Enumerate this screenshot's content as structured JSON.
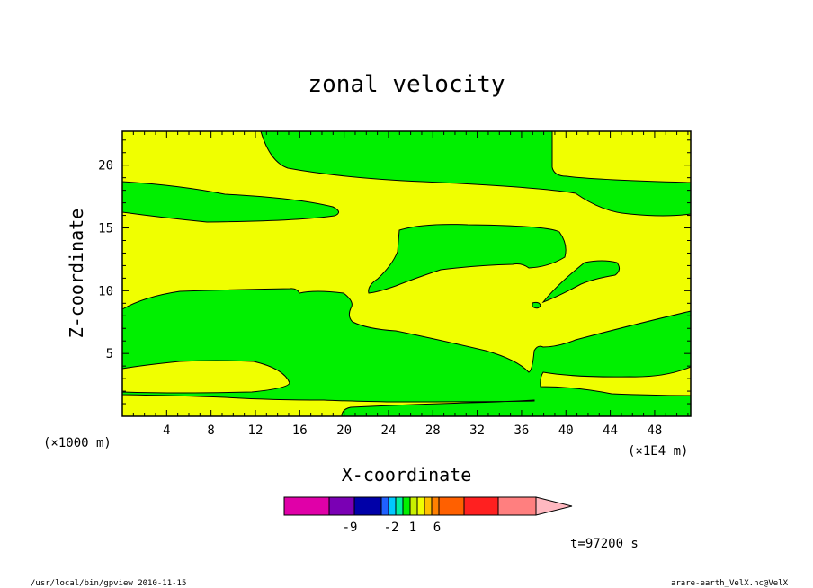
{
  "chart_data": {
    "type": "contour",
    "title": "zonal velocity",
    "xlabel": "X-coordinate",
    "ylabel": "Z-coordinate",
    "x_unit_left": "(×1000 m)",
    "x_unit_right": "(×1E4 m)",
    "x_ticks": [
      4,
      8,
      12,
      16,
      20,
      24,
      28,
      32,
      36,
      40,
      44,
      48
    ],
    "y_ticks": [
      5,
      10,
      15,
      20
    ],
    "xlim": [
      0,
      51.25
    ],
    "ylim": [
      0,
      22.7
    ],
    "contour_colors": {
      "positive_small": "#f0ff00",
      "negative_small": "#00f000",
      "background": "#ffffff"
    },
    "colorbar": {
      "colors": [
        "#e000a8",
        "#7a00b4",
        "#0000a8",
        "#2060ff",
        "#00c8ff",
        "#00f0a0",
        "#00f000",
        "#c8f000",
        "#f0ff00",
        "#ffc000",
        "#ff8000",
        "#ff6000",
        "#ff2020",
        "#ff7f7f",
        "#ffb8c0"
      ],
      "labels": [
        "-9",
        "-2",
        "1",
        "6"
      ]
    },
    "time_label": "t=97200 s"
  },
  "footer": {
    "left": "/usr/local/bin/gpview  2010-11-15",
    "right": "arare-earth_VelX.nc@VelX"
  }
}
